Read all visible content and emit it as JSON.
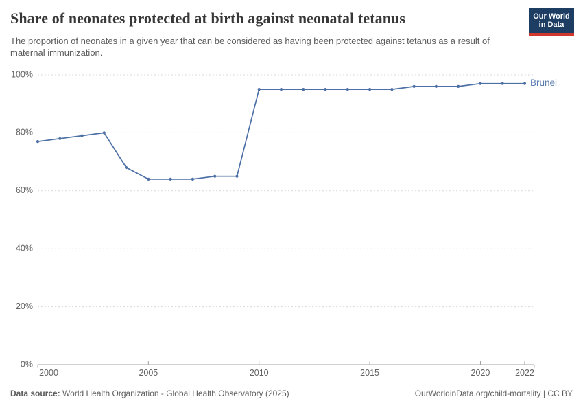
{
  "header": {
    "title": "Share of neonates protected at birth against neonatal tetanus",
    "subtitle": "The proportion of neonates in a given year that can be considered as having been protected against tetanus as a result of maternal immunization."
  },
  "logo": {
    "line1": "Our World",
    "line2": "in Data",
    "bg_color": "#1d3d63",
    "bar_color": "#d0382e"
  },
  "chart_data": {
    "type": "line",
    "title": "Share of neonates protected at birth against neonatal tetanus",
    "x": [
      2000,
      2001,
      2002,
      2003,
      2004,
      2005,
      2006,
      2007,
      2008,
      2009,
      2010,
      2011,
      2012,
      2013,
      2014,
      2015,
      2016,
      2017,
      2018,
      2019,
      2020,
      2021,
      2022
    ],
    "series": [
      {
        "name": "Brunei",
        "color": "#4C6FA5",
        "label_color": "#5b7db1",
        "values": [
          77,
          78,
          79,
          80,
          68,
          64,
          64,
          64,
          65,
          65,
          95,
          95,
          95,
          95,
          95,
          95,
          95,
          96,
          96,
          96,
          97,
          97,
          97
        ]
      }
    ],
    "xlim": [
      2000,
      2022
    ],
    "ylim": [
      0,
      100
    ],
    "xticks": [
      2000,
      2005,
      2010,
      2015,
      2020,
      2022
    ],
    "yticks": [
      0,
      20,
      40,
      60,
      80,
      100
    ],
    "ytick_suffix": "%",
    "grid": "horizontal-dashed",
    "legend": "line-end-label"
  },
  "footer": {
    "datasource_label": "Data source:",
    "datasource_text": " World Health Organization - Global Health Observatory (2025)",
    "right_text": "OurWorldinData.org/child-mortality | CC BY"
  },
  "colors": {
    "line": "#4C6FA5",
    "grid": "#d9d9d9",
    "axis": "#a3a3a3",
    "tick_text": "#636363",
    "title_text": "#383838",
    "subtitle_text": "#5b5b5b"
  }
}
